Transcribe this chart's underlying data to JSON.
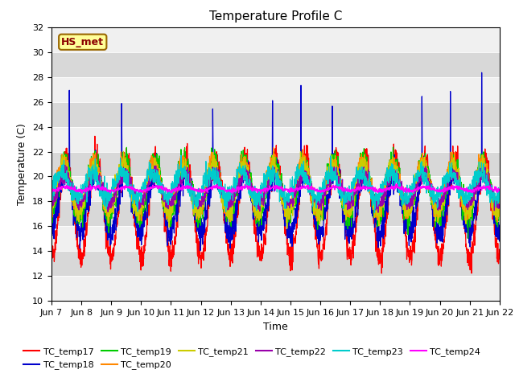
{
  "title": "Temperature Profile C",
  "xlabel": "Time",
  "ylabel": "Temperature (C)",
  "ylim": [
    10,
    32
  ],
  "series_names": [
    "TC_temp17",
    "TC_temp18",
    "TC_temp19",
    "TC_temp20",
    "TC_temp21",
    "TC_temp22",
    "TC_temp23",
    "TC_temp24"
  ],
  "series_colors": [
    "#ff0000",
    "#0000cc",
    "#00cc00",
    "#ff8800",
    "#cccc00",
    "#9900aa",
    "#00cccc",
    "#ff00ff"
  ],
  "annotation_text": "HS_met",
  "annotation_bg": "#ffff99",
  "annotation_border": "#996600",
  "background_color": "#e8e8e8",
  "band_color_light": "#f0f0f0",
  "band_color_dark": "#d8d8d8",
  "xtick_labels": [
    "Jun 7",
    "Jun 8",
    "Jun 9",
    "Jun 10",
    "Jun 11",
    "Jun 12",
    "Jun 13",
    "Jun 14",
    "Jun 15",
    "Jun 16",
    "Jun 17",
    "Jun 18",
    "Jun 19",
    "Jun 20",
    "Jun 21",
    "Jun 22"
  ],
  "n_days": 15,
  "points_per_day": 144,
  "title_fontsize": 11,
  "label_fontsize": 9,
  "tick_fontsize": 8,
  "line_width": 0.9
}
